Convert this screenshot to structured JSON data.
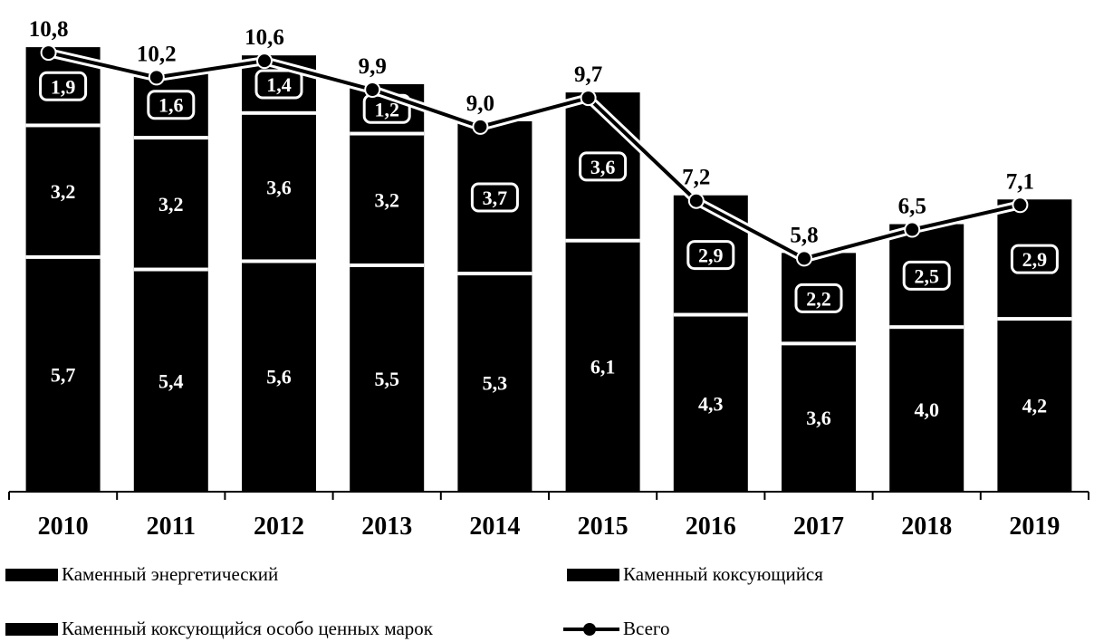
{
  "chart_data": {
    "type": "bar",
    "stacked": true,
    "categories": [
      "2010",
      "2011",
      "2012",
      "2013",
      "2014",
      "2015",
      "2016",
      "2017",
      "2018",
      "2019"
    ],
    "series": [
      {
        "name": "Каменный энергетический",
        "values": [
          5.7,
          5.4,
          5.6,
          5.5,
          5.3,
          6.1,
          4.3,
          3.6,
          4.0,
          4.2
        ],
        "color": "#000000"
      },
      {
        "name": "Каменный коксующийся",
        "values": [
          3.2,
          3.2,
          3.6,
          3.2,
          3.7,
          3.6,
          2.9,
          2.2,
          2.5,
          2.9
        ],
        "color": "#000000"
      },
      {
        "name": "Каменный коксующийся особо ценных марок",
        "values": [
          1.9,
          1.6,
          1.4,
          1.2,
          null,
          null,
          null,
          null,
          null,
          null
        ],
        "color": "#000000"
      }
    ],
    "line_series": {
      "name": "Всего",
      "values": [
        10.8,
        10.2,
        10.6,
        9.9,
        9.0,
        9.7,
        7.2,
        5.8,
        6.5,
        7.1
      ],
      "labels": [
        "10,8",
        "10,2",
        "10,6",
        "9,9",
        "9,0",
        "9,7",
        "7,2",
        "5,8",
        "6,5",
        "7,1"
      ]
    },
    "segment_labels": [
      [
        "5,7",
        "5,4",
        "5,6",
        "5,5",
        "5,3",
        "6,1",
        "4,3",
        "3,6",
        "4,0",
        "4,2"
      ],
      [
        "3,2",
        "3,2",
        "3,6",
        "3,2",
        "3,7",
        "3,6",
        "2,9",
        "2,2",
        "2,5",
        "2,9"
      ],
      [
        "1,9",
        "1,6",
        "1,4",
        "1,2",
        "",
        "",
        "",
        "",
        "",
        ""
      ]
    ],
    "ylim": [
      0,
      11
    ],
    "grid": false,
    "legend_position": "bottom"
  },
  "legend": {
    "items": [
      {
        "label": "Каменный энергетический"
      },
      {
        "label": "Каменный коксующийся"
      },
      {
        "label": "Каменный коксующийся особо ценных марок"
      },
      {
        "label": "Всего"
      }
    ]
  }
}
